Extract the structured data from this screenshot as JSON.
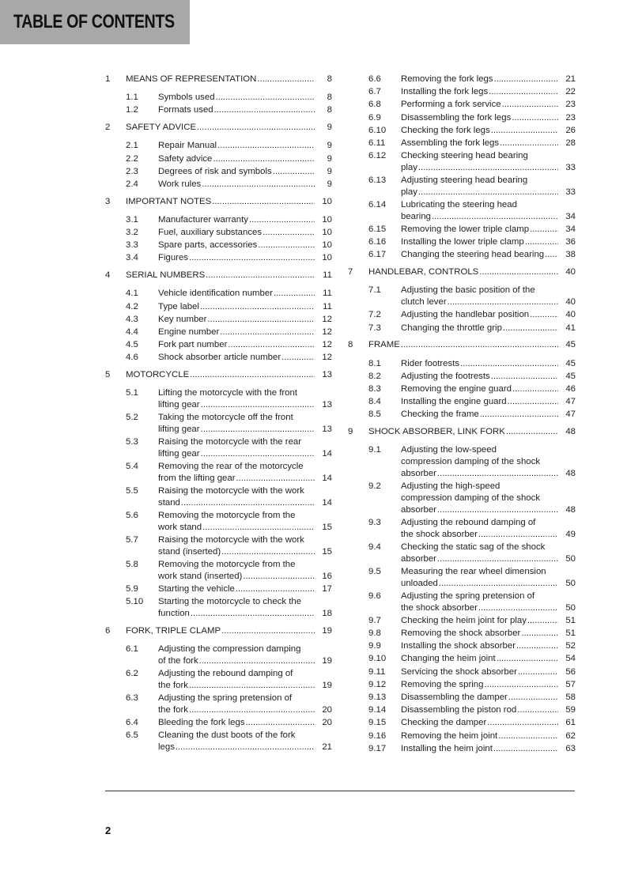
{
  "header": {
    "title": "TABLE OF CONTENTS",
    "background": "#a8a8a8"
  },
  "toc": {
    "left": [
      {
        "num": "1",
        "label": "MEANS OF REPRESENTATION",
        "page": "8",
        "level": 1
      },
      {
        "num": "1.1",
        "label": "Symbols used",
        "page": "8",
        "level": 2
      },
      {
        "num": "1.2",
        "label": "Formats used",
        "page": "8",
        "level": 2
      },
      {
        "num": "2",
        "label": "SAFETY ADVICE",
        "page": "9",
        "level": 1
      },
      {
        "num": "2.1",
        "label": "Repair Manual",
        "page": "9",
        "level": 2
      },
      {
        "num": "2.2",
        "label": "Safety advice",
        "page": "9",
        "level": 2
      },
      {
        "num": "2.3",
        "label": "Degrees of risk and symbols",
        "page": "9",
        "level": 2
      },
      {
        "num": "2.4",
        "label": "Work rules",
        "page": "9",
        "level": 2
      },
      {
        "num": "3",
        "label": "IMPORTANT NOTES",
        "page": "10",
        "level": 1
      },
      {
        "num": "3.1",
        "label": "Manufacturer warranty",
        "page": "10",
        "level": 2
      },
      {
        "num": "3.2",
        "label": "Fuel, auxiliary substances",
        "page": "10",
        "level": 2
      },
      {
        "num": "3.3",
        "label": "Spare parts, accessories",
        "page": "10",
        "level": 2
      },
      {
        "num": "3.4",
        "label": "Figures",
        "page": "10",
        "level": 2
      },
      {
        "num": "4",
        "label": "SERIAL NUMBERS",
        "page": "11",
        "level": 1
      },
      {
        "num": "4.1",
        "label": "Vehicle identification number",
        "page": "11",
        "level": 2
      },
      {
        "num": "4.2",
        "label": "Type label",
        "page": "11",
        "level": 2
      },
      {
        "num": "4.3",
        "label": "Key number",
        "page": "12",
        "level": 2
      },
      {
        "num": "4.4",
        "label": "Engine number",
        "page": "12",
        "level": 2
      },
      {
        "num": "4.5",
        "label": "Fork part number",
        "page": "12",
        "level": 2
      },
      {
        "num": "4.6",
        "label": "Shock absorber article number",
        "page": "12",
        "level": 2
      },
      {
        "num": "5",
        "label": "MOTORCYCLE",
        "page": "13",
        "level": 1
      },
      {
        "num": "5.1",
        "label": "Lifting the motorcycle with the front\nlifting gear",
        "page": "13",
        "level": 2
      },
      {
        "num": "5.2",
        "label": "Taking the motorcycle off the front\nlifting gear",
        "page": "13",
        "level": 2
      },
      {
        "num": "5.3",
        "label": "Raising the motorcycle with the rear\nlifting gear",
        "page": "14",
        "level": 2
      },
      {
        "num": "5.4",
        "label": "Removing the rear of the motorcycle\nfrom the lifting gear",
        "page": "14",
        "level": 2
      },
      {
        "num": "5.5",
        "label": "Raising the motorcycle with the work\nstand",
        "page": "14",
        "level": 2
      },
      {
        "num": "5.6",
        "label": "Removing the motorcycle from the\nwork stand",
        "page": "15",
        "level": 2
      },
      {
        "num": "5.7",
        "label": "Raising the motorcycle with the work\nstand (inserted)",
        "page": "15",
        "level": 2
      },
      {
        "num": "5.8",
        "label": "Removing the motorcycle from the\nwork stand (inserted)",
        "page": "16",
        "level": 2
      },
      {
        "num": "5.9",
        "label": "Starting the vehicle",
        "page": "17",
        "level": 2
      },
      {
        "num": "5.10",
        "label": "Starting the motorcycle to check the\nfunction",
        "page": "18",
        "level": 2
      },
      {
        "num": "6",
        "label": "FORK, TRIPLE CLAMP",
        "page": "19",
        "level": 1
      },
      {
        "num": "6.1",
        "label": "Adjusting the compression damping\nof the fork",
        "page": "19",
        "level": 2
      },
      {
        "num": "6.2",
        "label": "Adjusting the rebound damping of\nthe fork",
        "page": "19",
        "level": 2
      },
      {
        "num": "6.3",
        "label": "Adjusting the spring pretension of\nthe fork",
        "page": "20",
        "level": 2
      },
      {
        "num": "6.4",
        "label": "Bleeding the fork legs",
        "page": "20",
        "level": 2
      },
      {
        "num": "6.5",
        "label": "Cleaning the dust boots of the fork\nlegs",
        "page": "21",
        "level": 2
      }
    ],
    "right": [
      {
        "num": "6.6",
        "label": "Removing the fork legs",
        "page": "21",
        "level": 2
      },
      {
        "num": "6.7",
        "label": "Installing the fork legs",
        "page": "22",
        "level": 2
      },
      {
        "num": "6.8",
        "label": "Performing a fork service",
        "page": "23",
        "level": 2
      },
      {
        "num": "6.9",
        "label": "Disassembling the fork legs",
        "page": "23",
        "level": 2
      },
      {
        "num": "6.10",
        "label": "Checking the fork legs",
        "page": "26",
        "level": 2
      },
      {
        "num": "6.11",
        "label": "Assembling the fork legs",
        "page": "28",
        "level": 2
      },
      {
        "num": "6.12",
        "label": "Checking steering head bearing\nplay",
        "page": "33",
        "level": 2
      },
      {
        "num": "6.13",
        "label": "Adjusting steering head bearing\nplay",
        "page": "33",
        "level": 2
      },
      {
        "num": "6.14",
        "label": "Lubricating the steering head\nbearing",
        "page": "34",
        "level": 2
      },
      {
        "num": "6.15",
        "label": "Removing the lower triple clamp",
        "page": "34",
        "level": 2
      },
      {
        "num": "6.16",
        "label": "Installing the lower triple clamp",
        "page": "36",
        "level": 2
      },
      {
        "num": "6.17",
        "label": "Changing the steering head bearing",
        "page": "38",
        "level": 2
      },
      {
        "num": "7",
        "label": "HANDLEBAR, CONTROLS",
        "page": "40",
        "level": 1
      },
      {
        "num": "7.1",
        "label": "Adjusting the basic position of the\nclutch lever",
        "page": "40",
        "level": 2
      },
      {
        "num": "7.2",
        "label": "Adjusting the handlebar position",
        "page": "40",
        "level": 2
      },
      {
        "num": "7.3",
        "label": "Changing the throttle grip",
        "page": "41",
        "level": 2
      },
      {
        "num": "8",
        "label": "FRAME",
        "page": "45",
        "level": 1
      },
      {
        "num": "8.1",
        "label": "Rider footrests",
        "page": "45",
        "level": 2
      },
      {
        "num": "8.2",
        "label": "Adjusting the footrests",
        "page": "45",
        "level": 2
      },
      {
        "num": "8.3",
        "label": "Removing the engine guard",
        "page": "46",
        "level": 2
      },
      {
        "num": "8.4",
        "label": "Installing the engine guard",
        "page": "47",
        "level": 2
      },
      {
        "num": "8.5",
        "label": "Checking the frame",
        "page": "47",
        "level": 2
      },
      {
        "num": "9",
        "label": "SHOCK ABSORBER, LINK FORK",
        "page": "48",
        "level": 1
      },
      {
        "num": "9.1",
        "label": "Adjusting the low-speed\ncompression damping of the shock\nabsorber",
        "page": "48",
        "level": 2
      },
      {
        "num": "9.2",
        "label": "Adjusting the high-speed\ncompression damping of the shock\nabsorber",
        "page": "48",
        "level": 2
      },
      {
        "num": "9.3",
        "label": "Adjusting the rebound damping of\nthe shock absorber",
        "page": "49",
        "level": 2
      },
      {
        "num": "9.4",
        "label": "Checking the static sag of the shock\nabsorber",
        "page": "50",
        "level": 2
      },
      {
        "num": "9.5",
        "label": "Measuring the rear wheel dimension\nunloaded",
        "page": "50",
        "level": 2
      },
      {
        "num": "9.6",
        "label": "Adjusting the spring pretension of\nthe shock absorber",
        "page": "50",
        "level": 2
      },
      {
        "num": "9.7",
        "label": "Checking the heim joint for play",
        "page": "51",
        "level": 2
      },
      {
        "num": "9.8",
        "label": "Removing the shock absorber",
        "page": "51",
        "level": 2
      },
      {
        "num": "9.9",
        "label": "Installing the shock absorber",
        "page": "52",
        "level": 2
      },
      {
        "num": "9.10",
        "label": "Changing the heim joint",
        "page": "54",
        "level": 2
      },
      {
        "num": "9.11",
        "label": "Servicing the shock absorber",
        "page": "56",
        "level": 2
      },
      {
        "num": "9.12",
        "label": "Removing the spring",
        "page": "57",
        "level": 2
      },
      {
        "num": "9.13",
        "label": "Disassembling the damper",
        "page": "58",
        "level": 2
      },
      {
        "num": "9.14",
        "label": "Disassembling the piston rod",
        "page": "59",
        "level": 2
      },
      {
        "num": "9.15",
        "label": "Checking the damper",
        "page": "61",
        "level": 2
      },
      {
        "num": "9.16",
        "label": "Removing the heim joint",
        "page": "62",
        "level": 2
      },
      {
        "num": "9.17",
        "label": "Installing the heim joint",
        "page": "63",
        "level": 2
      }
    ]
  },
  "footer": {
    "page_number": "2"
  }
}
